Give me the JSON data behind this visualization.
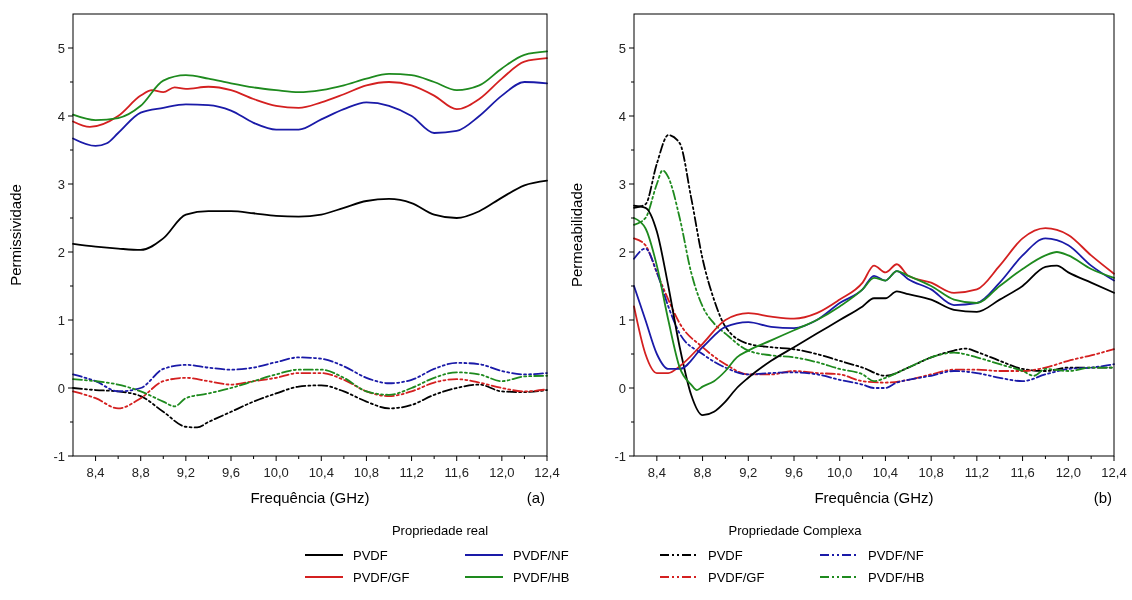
{
  "chart_data": [
    {
      "type": "line",
      "xlabel": "Frequência (GHz)",
      "ylabel": "Permissividade",
      "legend_title": "Propriedade real",
      "legend": "bottom",
      "annotations": [
        "(a)"
      ],
      "xlim": [
        8.2,
        12.4
      ],
      "ylim": [
        -1,
        5.5
      ],
      "xticks": [
        {
          "value": 8.4,
          "label": "8,4"
        },
        {
          "value": 8.6,
          "label": null
        },
        {
          "value": 8.8,
          "label": "8,8"
        },
        {
          "value": 9.0,
          "label": null
        },
        {
          "value": 9.2,
          "label": "9,2"
        },
        {
          "value": 9.4,
          "label": null
        },
        {
          "value": 9.6,
          "label": "9,6"
        },
        {
          "value": 9.8,
          "label": null
        },
        {
          "value": 10.0,
          "label": "10,0"
        },
        {
          "value": 10.2,
          "label": null
        },
        {
          "value": 10.4,
          "label": "10,4"
        },
        {
          "value": 10.6,
          "label": null
        },
        {
          "value": 10.8,
          "label": "10,8"
        },
        {
          "value": 11.0,
          "label": null
        },
        {
          "value": 11.2,
          "label": "11,2"
        },
        {
          "value": 11.4,
          "label": null
        },
        {
          "value": 11.6,
          "label": "11,6"
        },
        {
          "value": 11.8,
          "label": null
        },
        {
          "value": 12.0,
          "label": "12,0"
        },
        {
          "value": 12.2,
          "label": null
        },
        {
          "value": 12.4,
          "label": "12,4"
        }
      ],
      "yticks": [
        -1,
        {
          "value": -0.5,
          "label": null
        },
        0,
        {
          "value": 0.5,
          "label": null
        },
        1,
        {
          "value": 1.5,
          "label": null
        },
        2,
        {
          "value": 2.5,
          "label": null
        },
        3,
        {
          "value": 3.5,
          "label": null
        },
        4,
        {
          "value": 4.5,
          "label": null
        },
        5
      ],
      "series": [
        {
          "name": "PVDF",
          "color": "#000000",
          "line_style": "solid",
          "x": [
            8.2,
            8.4,
            8.6,
            8.8,
            9.0,
            9.2,
            9.4,
            9.6,
            9.8,
            10.0,
            10.2,
            10.4,
            10.6,
            10.8,
            11.0,
            11.2,
            11.4,
            11.6,
            11.8,
            12.0,
            12.2,
            12.4
          ],
          "values": [
            2.12,
            2.08,
            2.05,
            2.03,
            2.2,
            2.55,
            2.6,
            2.6,
            2.57,
            2.53,
            2.52,
            2.55,
            2.65,
            2.75,
            2.78,
            2.72,
            2.55,
            2.5,
            2.6,
            2.8,
            2.98,
            3.05
          ]
        },
        {
          "name": "PVDF/GF",
          "color": "#d42020",
          "line_style": "solid",
          "x": [
            8.2,
            8.35,
            8.6,
            8.8,
            8.9,
            9.0,
            9.1,
            9.2,
            9.4,
            9.6,
            9.8,
            10.0,
            10.2,
            10.4,
            10.6,
            10.8,
            11.0,
            11.2,
            11.4,
            11.6,
            11.8,
            12.0,
            12.2,
            12.4
          ],
          "values": [
            3.92,
            3.84,
            4.0,
            4.3,
            4.38,
            4.35,
            4.42,
            4.4,
            4.43,
            4.38,
            4.25,
            4.15,
            4.12,
            4.2,
            4.32,
            4.45,
            4.5,
            4.45,
            4.3,
            4.1,
            4.25,
            4.55,
            4.8,
            4.85
          ]
        },
        {
          "name": "PVDF/NF",
          "color": "#1a1aa8",
          "line_style": "solid",
          "x": [
            8.2,
            8.4,
            8.5,
            8.6,
            8.8,
            9.0,
            9.2,
            9.4,
            9.6,
            9.8,
            10.0,
            10.2,
            10.4,
            10.6,
            10.8,
            11.0,
            11.2,
            11.4,
            11.6,
            11.8,
            12.0,
            12.2,
            12.4
          ],
          "values": [
            3.67,
            3.56,
            3.6,
            3.75,
            4.05,
            4.12,
            4.17,
            4.16,
            4.08,
            3.9,
            3.8,
            3.8,
            3.95,
            4.1,
            4.2,
            4.15,
            4.0,
            3.75,
            3.78,
            4.0,
            4.3,
            4.5,
            4.48
          ]
        },
        {
          "name": "PVDF/HB",
          "color": "#1e8a1e",
          "line_style": "solid",
          "x": [
            8.2,
            8.4,
            8.6,
            8.8,
            9.0,
            9.2,
            9.4,
            9.6,
            9.8,
            10.0,
            10.2,
            10.4,
            10.6,
            10.8,
            11.0,
            11.2,
            11.4,
            11.6,
            11.8,
            12.0,
            12.2,
            12.4
          ],
          "values": [
            4.02,
            3.94,
            3.97,
            4.15,
            4.52,
            4.6,
            4.55,
            4.48,
            4.42,
            4.38,
            4.35,
            4.38,
            4.45,
            4.55,
            4.62,
            4.6,
            4.5,
            4.38,
            4.45,
            4.7,
            4.9,
            4.95
          ]
        },
        {
          "color": "#000000",
          "line_style": "dashed",
          "x": [
            8.2,
            8.4,
            8.6,
            8.8,
            9.0,
            9.2,
            9.3,
            9.4,
            9.6,
            9.8,
            10.0,
            10.2,
            10.4,
            10.6,
            10.8,
            11.0,
            11.2,
            11.4,
            11.6,
            11.8,
            12.0,
            12.2,
            12.4
          ],
          "values": [
            0.0,
            -0.03,
            -0.05,
            -0.12,
            -0.35,
            -0.57,
            -0.58,
            -0.5,
            -0.35,
            -0.2,
            -0.08,
            0.02,
            0.04,
            -0.05,
            -0.2,
            -0.3,
            -0.25,
            -0.1,
            0.0,
            0.05,
            -0.05,
            -0.06,
            -0.03
          ]
        },
        {
          "color": "#d42020",
          "line_style": "dashed",
          "x": [
            8.2,
            8.4,
            8.6,
            8.8,
            9.0,
            9.2,
            9.4,
            9.6,
            9.8,
            10.0,
            10.2,
            10.4,
            10.6,
            10.8,
            11.0,
            11.2,
            11.4,
            11.6,
            11.8,
            12.0,
            12.2,
            12.4
          ],
          "values": [
            -0.05,
            -0.15,
            -0.3,
            -0.15,
            0.1,
            0.15,
            0.1,
            0.05,
            0.1,
            0.15,
            0.22,
            0.22,
            0.12,
            -0.05,
            -0.12,
            -0.05,
            0.08,
            0.13,
            0.08,
            0.0,
            -0.05,
            -0.02
          ]
        },
        {
          "color": "#1a1aa8",
          "line_style": "dashed",
          "x": [
            8.2,
            8.4,
            8.6,
            8.8,
            9.0,
            9.2,
            9.4,
            9.6,
            9.8,
            10.0,
            10.2,
            10.4,
            10.6,
            10.8,
            11.0,
            11.2,
            11.4,
            11.6,
            11.8,
            12.0,
            12.2,
            12.4
          ],
          "values": [
            0.2,
            0.1,
            -0.05,
            0.0,
            0.28,
            0.34,
            0.3,
            0.27,
            0.3,
            0.38,
            0.45,
            0.43,
            0.32,
            0.15,
            0.07,
            0.12,
            0.28,
            0.37,
            0.35,
            0.25,
            0.2,
            0.22
          ]
        },
        {
          "color": "#1e8a1e",
          "line_style": "dashed",
          "x": [
            8.2,
            8.4,
            8.6,
            8.8,
            9.0,
            9.1,
            9.2,
            9.4,
            9.6,
            9.8,
            10.0,
            10.2,
            10.4,
            10.6,
            10.8,
            11.0,
            11.2,
            11.4,
            11.6,
            11.8,
            12.0,
            12.2,
            12.4
          ],
          "values": [
            0.13,
            0.1,
            0.05,
            -0.05,
            -0.2,
            -0.27,
            -0.15,
            -0.08,
            0.0,
            0.1,
            0.2,
            0.27,
            0.27,
            0.15,
            -0.05,
            -0.1,
            0.0,
            0.15,
            0.23,
            0.2,
            0.1,
            0.17,
            0.18
          ]
        }
      ]
    },
    {
      "type": "line",
      "xlabel": "Frequência (GHz)",
      "ylabel": "Permeabilidade",
      "legend_title": "Propriedade Complexa",
      "legend": "bottom",
      "annotations": [
        "(b)"
      ],
      "xlim": [
        8.2,
        12.4
      ],
      "ylim": [
        -1,
        5.5
      ],
      "xticks": [
        {
          "value": 8.4,
          "label": "8,4"
        },
        {
          "value": 8.6,
          "label": null
        },
        {
          "value": 8.8,
          "label": "8,8"
        },
        {
          "value": 9.0,
          "label": null
        },
        {
          "value": 9.2,
          "label": "9,2"
        },
        {
          "value": 9.4,
          "label": null
        },
        {
          "value": 9.6,
          "label": "9,6"
        },
        {
          "value": 9.8,
          "label": null
        },
        {
          "value": 10.0,
          "label": "10,0"
        },
        {
          "value": 10.2,
          "label": null
        },
        {
          "value": 10.4,
          "label": "10,4"
        },
        {
          "value": 10.6,
          "label": null
        },
        {
          "value": 10.8,
          "label": "10,8"
        },
        {
          "value": 11.0,
          "label": null
        },
        {
          "value": 11.2,
          "label": "11,2"
        },
        {
          "value": 11.4,
          "label": null
        },
        {
          "value": 11.6,
          "label": "11,6"
        },
        {
          "value": 11.8,
          "label": null
        },
        {
          "value": 12.0,
          "label": "12,0"
        },
        {
          "value": 12.2,
          "label": null
        },
        {
          "value": 12.4,
          "label": "12,4"
        }
      ],
      "yticks": [
        -1,
        {
          "value": -0.5,
          "label": null
        },
        0,
        {
          "value": 0.5,
          "label": null
        },
        1,
        {
          "value": 1.5,
          "label": null
        },
        2,
        {
          "value": 2.5,
          "label": null
        },
        3,
        {
          "value": 3.5,
          "label": null
        },
        4,
        {
          "value": 4.5,
          "label": null
        },
        5
      ],
      "series": [
        {
          "name": "PVDF",
          "color": "#000000",
          "line_style": "dashed",
          "x": [
            8.2,
            8.3,
            8.4,
            8.5,
            8.6,
            8.7,
            8.8,
            8.9,
            9.0,
            9.2,
            9.4,
            9.6,
            9.8,
            10.0,
            10.2,
            10.4,
            10.6,
            10.8,
            11.0,
            11.1,
            11.2,
            11.4,
            11.6,
            11.8,
            12.0,
            12.2,
            12.4
          ],
          "values": [
            2.65,
            2.7,
            3.3,
            3.72,
            3.6,
            2.8,
            1.9,
            1.3,
            0.9,
            0.65,
            0.6,
            0.57,
            0.5,
            0.4,
            0.3,
            0.18,
            0.3,
            0.45,
            0.55,
            0.58,
            0.53,
            0.4,
            0.28,
            0.25,
            0.3,
            0.3,
            0.3
          ]
        },
        {
          "name": "PVDF/GF",
          "color": "#d42020",
          "line_style": "dashed",
          "x": [
            8.2,
            8.3,
            8.4,
            8.5,
            8.6,
            8.8,
            9.0,
            9.2,
            9.4,
            9.6,
            9.8,
            10.0,
            10.2,
            10.4,
            10.6,
            10.8,
            11.0,
            11.2,
            11.4,
            11.6,
            11.8,
            12.0,
            12.2,
            12.4
          ],
          "values": [
            2.2,
            2.1,
            1.7,
            1.3,
            0.95,
            0.6,
            0.35,
            0.2,
            0.2,
            0.25,
            0.22,
            0.2,
            0.1,
            0.08,
            0.12,
            0.2,
            0.27,
            0.27,
            0.25,
            0.25,
            0.3,
            0.4,
            0.48,
            0.57
          ]
        },
        {
          "name": "PVDF/NF",
          "color": "#1a1aa8",
          "line_style": "dashed",
          "x": [
            8.2,
            8.3,
            8.4,
            8.5,
            8.6,
            8.8,
            9.0,
            9.2,
            9.4,
            9.6,
            9.8,
            10.0,
            10.2,
            10.3,
            10.4,
            10.5,
            10.6,
            10.8,
            11.0,
            11.2,
            11.4,
            11.6,
            11.8,
            12.0,
            12.2,
            12.4
          ],
          "values": [
            1.9,
            2.05,
            1.7,
            1.2,
            0.8,
            0.5,
            0.3,
            0.2,
            0.22,
            0.23,
            0.2,
            0.12,
            0.05,
            0.0,
            0.0,
            0.08,
            0.12,
            0.18,
            0.25,
            0.22,
            0.15,
            0.1,
            0.2,
            0.28,
            0.3,
            0.35
          ]
        },
        {
          "name": "PVDF/HB",
          "color": "#1e8a1e",
          "line_style": "dashed",
          "x": [
            8.2,
            8.3,
            8.4,
            8.45,
            8.5,
            8.6,
            8.7,
            8.8,
            8.9,
            9.0,
            9.2,
            9.4,
            9.6,
            9.8,
            10.0,
            10.2,
            10.3,
            10.4,
            10.6,
            10.8,
            11.0,
            11.2,
            11.4,
            11.6,
            11.7,
            11.8,
            12.0,
            12.2,
            12.4
          ],
          "values": [
            2.4,
            2.5,
            3.0,
            3.2,
            3.1,
            2.5,
            1.7,
            1.2,
            0.95,
            0.8,
            0.55,
            0.48,
            0.45,
            0.38,
            0.28,
            0.2,
            0.1,
            0.15,
            0.3,
            0.45,
            0.52,
            0.45,
            0.35,
            0.25,
            0.18,
            0.28,
            0.25,
            0.3,
            0.3
          ]
        },
        {
          "color": "#000000",
          "line_style": "solid",
          "x": [
            8.2,
            8.3,
            8.4,
            8.5,
            8.6,
            8.7,
            8.8,
            8.9,
            9.0,
            9.1,
            9.2,
            9.4,
            9.6,
            9.8,
            10.0,
            10.2,
            10.3,
            10.4,
            10.5,
            10.6,
            10.8,
            11.0,
            11.2,
            11.4,
            11.6,
            11.8,
            11.9,
            12.0,
            12.2,
            12.4
          ],
          "values": [
            2.68,
            2.65,
            2.3,
            1.5,
            0.6,
            -0.1,
            -0.4,
            -0.35,
            -0.2,
            0.0,
            0.15,
            0.4,
            0.6,
            0.8,
            1.0,
            1.2,
            1.32,
            1.32,
            1.42,
            1.38,
            1.3,
            1.15,
            1.12,
            1.3,
            1.5,
            1.78,
            1.8,
            1.7,
            1.55,
            1.4
          ]
        },
        {
          "color": "#d42020",
          "line_style": "solid",
          "x": [
            8.2,
            8.3,
            8.4,
            8.5,
            8.6,
            8.8,
            9.0,
            9.2,
            9.4,
            9.6,
            9.8,
            10.0,
            10.2,
            10.3,
            10.4,
            10.5,
            10.6,
            10.8,
            11.0,
            11.2,
            11.4,
            11.6,
            11.8,
            12.0,
            12.2,
            12.4
          ],
          "values": [
            1.2,
            0.5,
            0.22,
            0.22,
            0.32,
            0.65,
            1.0,
            1.1,
            1.05,
            1.02,
            1.1,
            1.3,
            1.55,
            1.8,
            1.7,
            1.82,
            1.65,
            1.55,
            1.4,
            1.45,
            1.8,
            2.2,
            2.35,
            2.25,
            1.95,
            1.68
          ]
        },
        {
          "color": "#1a1aa8",
          "line_style": "solid",
          "x": [
            8.2,
            8.3,
            8.4,
            8.5,
            8.6,
            8.8,
            9.0,
            9.2,
            9.4,
            9.6,
            9.8,
            10.0,
            10.2,
            10.3,
            10.4,
            10.5,
            10.6,
            10.8,
            11.0,
            11.2,
            11.4,
            11.6,
            11.8,
            12.0,
            12.2,
            12.4
          ],
          "values": [
            1.5,
            1.0,
            0.5,
            0.28,
            0.28,
            0.6,
            0.9,
            0.97,
            0.9,
            0.88,
            1.0,
            1.25,
            1.45,
            1.65,
            1.58,
            1.72,
            1.6,
            1.45,
            1.22,
            1.25,
            1.55,
            1.95,
            2.2,
            2.1,
            1.8,
            1.58
          ]
        },
        {
          "color": "#1e8a1e",
          "line_style": "solid",
          "x": [
            8.2,
            8.3,
            8.4,
            8.5,
            8.6,
            8.7,
            8.75,
            8.8,
            8.9,
            9.0,
            9.1,
            9.2,
            9.4,
            9.6,
            9.8,
            10.0,
            10.2,
            10.3,
            10.4,
            10.5,
            10.6,
            10.8,
            11.0,
            11.2,
            11.4,
            11.6,
            11.8,
            11.9,
            12.0,
            12.2,
            12.4
          ],
          "values": [
            2.5,
            2.35,
            1.8,
            1.0,
            0.3,
            0.05,
            -0.03,
            0.02,
            0.1,
            0.25,
            0.45,
            0.55,
            0.7,
            0.85,
            1.0,
            1.2,
            1.45,
            1.62,
            1.58,
            1.72,
            1.65,
            1.5,
            1.3,
            1.25,
            1.5,
            1.75,
            1.95,
            2.0,
            1.95,
            1.75,
            1.62
          ]
        }
      ]
    }
  ]
}
